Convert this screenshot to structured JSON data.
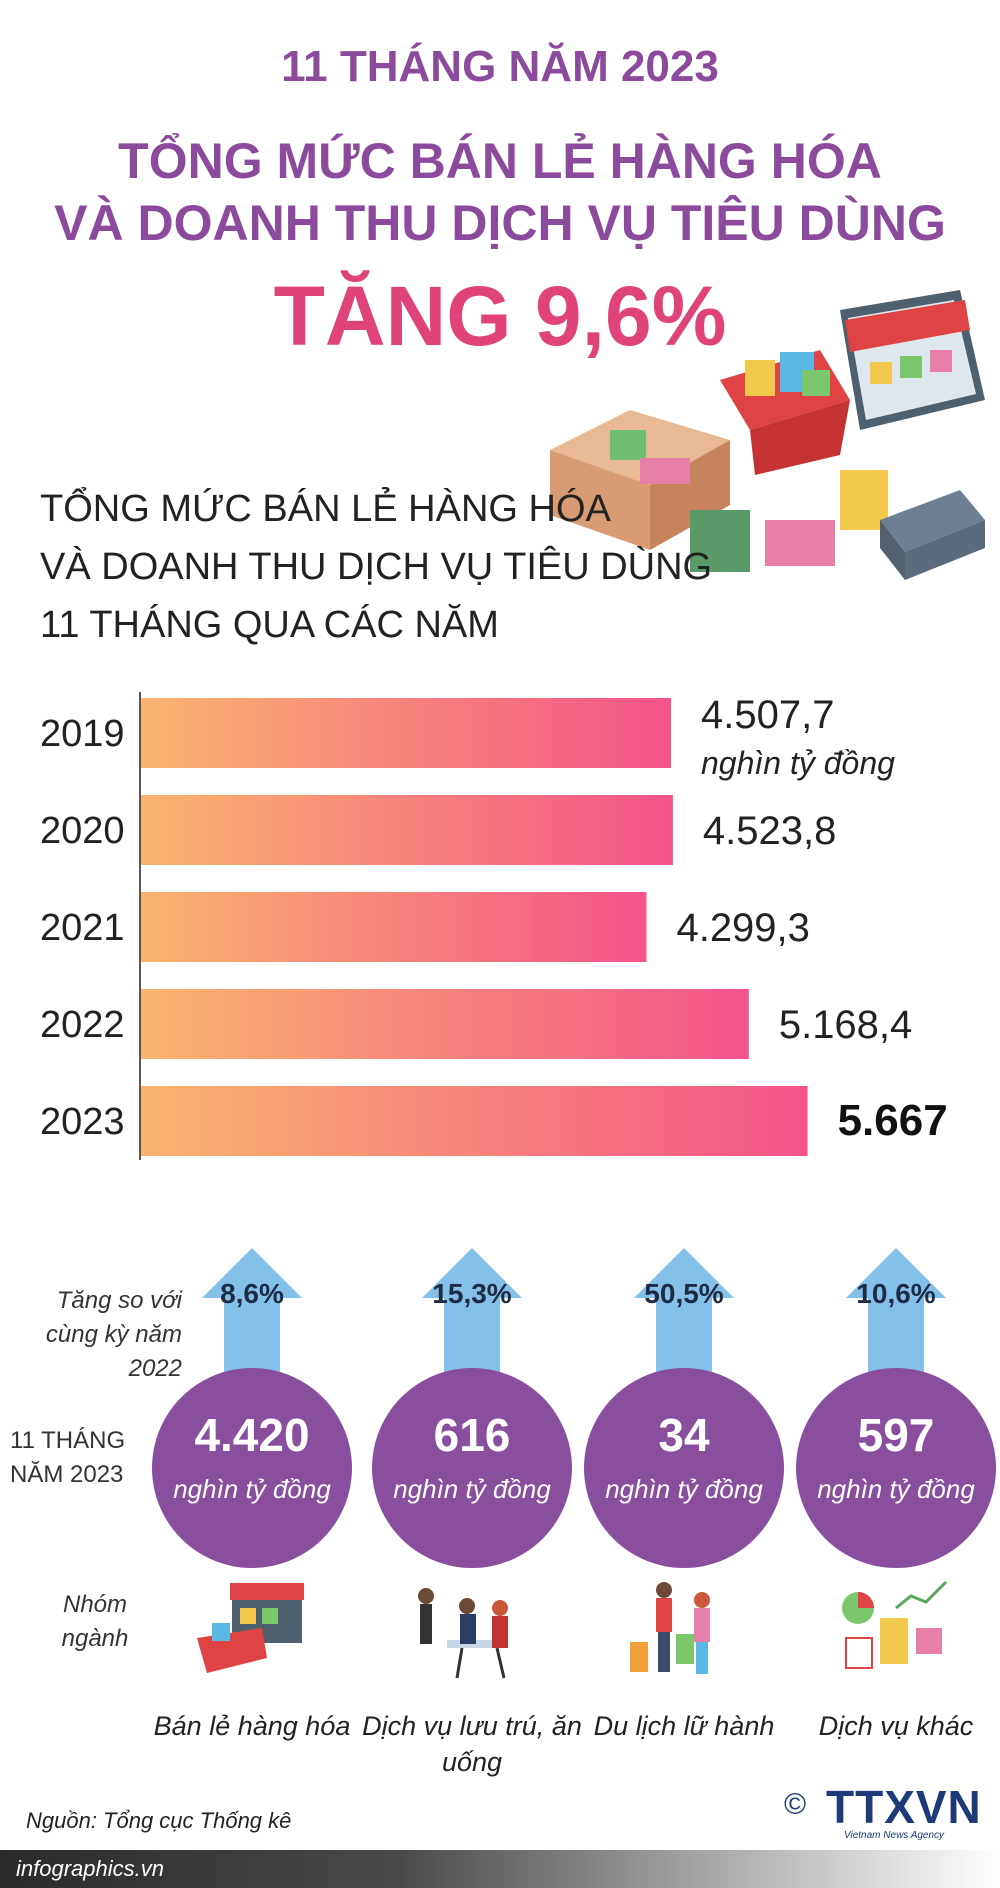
{
  "header": {
    "period": "11 THÁNG NĂM 2023",
    "title_line1": "TỔNG MỨC BÁN LẺ HÀNG HÓA",
    "title_line2": "VÀ DOANH THU DỊCH VỤ TIÊU DÙNG",
    "headline": "TĂNG 9,6%"
  },
  "subtitle": {
    "line1": "TỔNG MỨC BÁN LẺ HÀNG HÓA",
    "line2": "VÀ DOANH THU DỊCH VỤ TIÊU DÙNG",
    "line3": "11 THÁNG QUA CÁC NĂM"
  },
  "chart_data": {
    "type": "bar",
    "orientation": "horizontal",
    "categories": [
      "2019",
      "2020",
      "2021",
      "2022",
      "2023"
    ],
    "values": [
      4507.7,
      4523.8,
      4299.3,
      5168.4,
      5667
    ],
    "value_labels": [
      "4.507,7",
      "4.523,8",
      "4.299,3",
      "5.168,4",
      "5.667"
    ],
    "unit": "nghìn tỷ đồng",
    "highlight_index": 4,
    "bar_gradient": [
      "#f9b46e",
      "#f4538a"
    ]
  },
  "groups_section": {
    "growth_label": "Tăng so với cùng kỳ năm 2022",
    "period_label": "11 THÁNG NĂM 2023",
    "group_label": "Nhóm ngành",
    "unit": "nghìn tỷ đồng",
    "items": [
      {
        "growth": "8,6%",
        "value": "4.420",
        "name": "Bán lẻ hàng hóa",
        "icon": "shop-basket-icon"
      },
      {
        "growth": "15,3%",
        "value": "616",
        "name": "Dịch vụ lưu trú, ăn uống",
        "icon": "restaurant-icon"
      },
      {
        "growth": "50,5%",
        "value": "34",
        "name": "Du lịch lữ hành",
        "icon": "travelers-icon"
      },
      {
        "growth": "10,6%",
        "value": "597",
        "name": "Dịch vụ khác",
        "icon": "services-chart-icon"
      }
    ]
  },
  "footer": {
    "source": "Nguồn: Tổng cục Thống kê",
    "site": "infographics.vn",
    "copyright": "©",
    "agency": "TTXVN",
    "agency_sub": "Vietnam News Agency"
  },
  "colors": {
    "title_purple": "#8b4a9c",
    "headline_pink": "#e0437a",
    "circle_purple": "#8a4e9e",
    "arrow_blue": "#6fb6e6"
  }
}
